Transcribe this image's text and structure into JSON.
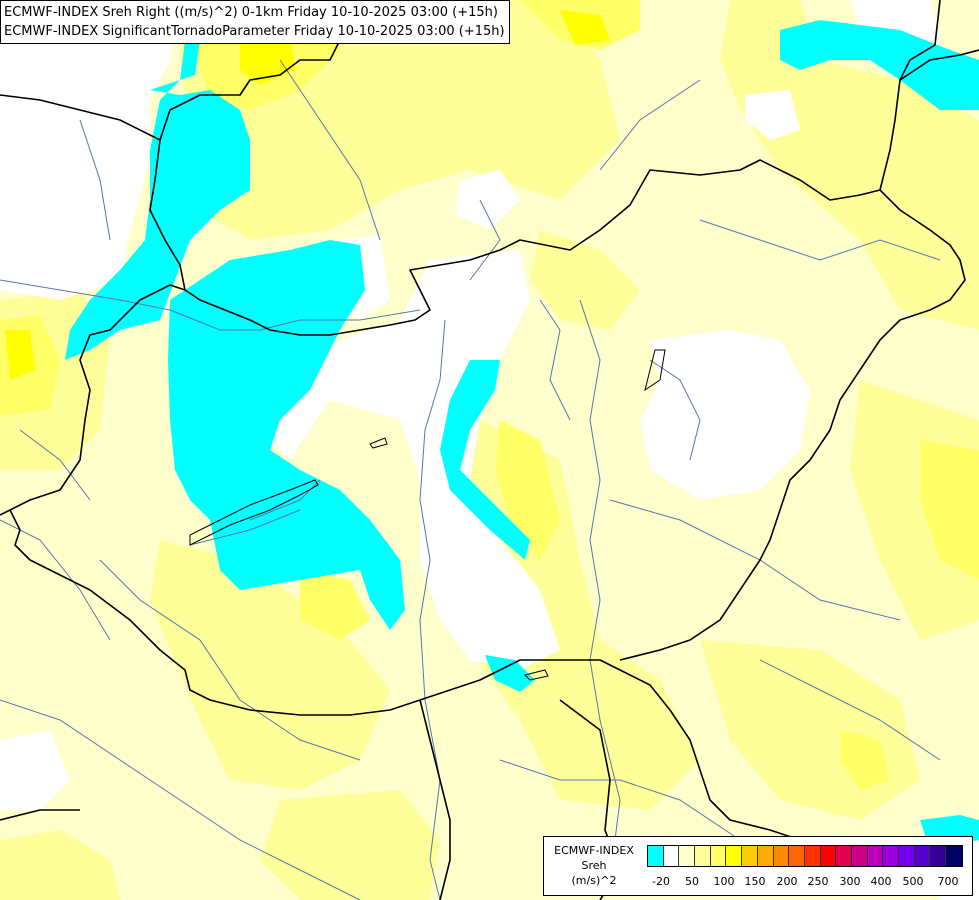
{
  "titles": {
    "line1": "ECMWF-INDEX Sreh Right ((m/s)^2) 0-1km Friday 10-10-2025 03:00 (+15h)",
    "line2": "ECMWF-INDEX SignificantTornadoParameter Friday 10-10-2025 03:00 (+15h)"
  },
  "legend": {
    "line1": "ECMWF-INDEX",
    "line2": "Sreh",
    "line3": "(m/s)^2",
    "colors": [
      "#00ffff",
      "#ffffff",
      "#ffffcc",
      "#ffff99",
      "#ffff66",
      "#ffff00",
      "#ffcc00",
      "#ffaa00",
      "#ff8800",
      "#ff6600",
      "#ff3300",
      "#ff0000",
      "#e0004f",
      "#cc0088",
      "#bb00bb",
      "#9900dd",
      "#7700ee",
      "#5500cc",
      "#330099",
      "#000066"
    ],
    "ticks": [
      "-20",
      "50",
      "100",
      "150",
      "200",
      "250",
      "300",
      "400",
      "500",
      "700"
    ]
  },
  "colors": {
    "background": "#ffffcc",
    "light_yellow": "#ffff99",
    "yellow": "#ffff66",
    "strong_yellow": "#ffff00",
    "cyan": "#00ffff",
    "white": "#ffffff",
    "border_lines": "#000000",
    "rivers": "#5577aa"
  }
}
